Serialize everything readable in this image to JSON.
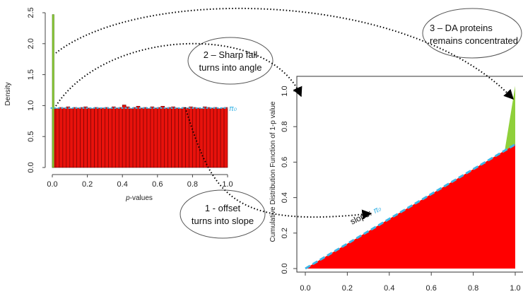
{
  "colors": {
    "bar": "#e8120c",
    "spike": "#8fd03a",
    "pi_line": "#3fb6e6",
    "area": "#ff0000",
    "wedge": "#8fd03a"
  },
  "chart_data": [
    {
      "type": "bar",
      "ylabel": "Density",
      "xlabel_italic": "p",
      "xlabel_rest": "-values",
      "xlim": [
        0,
        1
      ],
      "ylim": [
        0,
        2.5
      ],
      "x_ticks": [
        "0.0",
        "0.2",
        "0.4",
        "0.6",
        "0.8",
        "1.0"
      ],
      "y_ticks": [
        "0.0",
        "0.5",
        "1.0",
        "1.5",
        "2.0",
        "2.5"
      ],
      "pi0_label": "π₀",
      "pi0": 0.96,
      "spike_bin": {
        "x0": 0.0,
        "x1": 0.01,
        "value": 2.47
      },
      "bin_width": 0.02,
      "values": [
        0.96,
        0.95,
        0.97,
        0.96,
        0.98,
        0.95,
        0.97,
        0.96,
        0.97,
        0.98,
        0.96,
        0.95,
        0.97,
        0.96,
        0.96,
        0.97,
        0.95,
        0.98,
        0.96,
        0.97,
        1.01,
        0.98,
        0.95,
        0.97,
        0.99,
        0.96,
        0.97,
        0.95,
        0.98,
        0.96,
        0.97,
        0.99,
        0.96,
        0.97,
        0.98,
        0.96,
        0.95,
        0.97,
        0.96,
        0.98,
        0.97,
        0.96,
        0.95,
        0.98,
        0.97,
        0.96,
        0.97,
        0.95,
        0.96,
        0.97
      ]
    },
    {
      "type": "area",
      "ylabel": "Cumulative Distribution Function of 1-p value",
      "xlim": [
        0,
        1
      ],
      "ylim": [
        0,
        1.05
      ],
      "x_ticks": [
        "0.0",
        "0.2",
        "0.4",
        "0.6",
        "0.8",
        "1.0"
      ],
      "y_ticks": [
        "0.0",
        "0.2",
        "0.4",
        "0.6",
        "0.8",
        "1.0"
      ],
      "line": {
        "x": [
          0,
          1
        ],
        "y": [
          0,
          0.7
        ]
      },
      "wedge": {
        "x": [
          0.95,
          1,
          1
        ],
        "y": [
          0.665,
          0.7,
          1.03
        ]
      },
      "slope_label": "slope:",
      "slope_pi": "π₀"
    }
  ],
  "annotations": [
    {
      "text_lines": [
        "1 - offset",
        "turns into slope"
      ]
    },
    {
      "text_lines": [
        "2 – Sharp fall",
        "turns into angle"
      ]
    },
    {
      "text_lines": [
        "3 – DA proteins",
        "remains concentrated"
      ]
    }
  ]
}
